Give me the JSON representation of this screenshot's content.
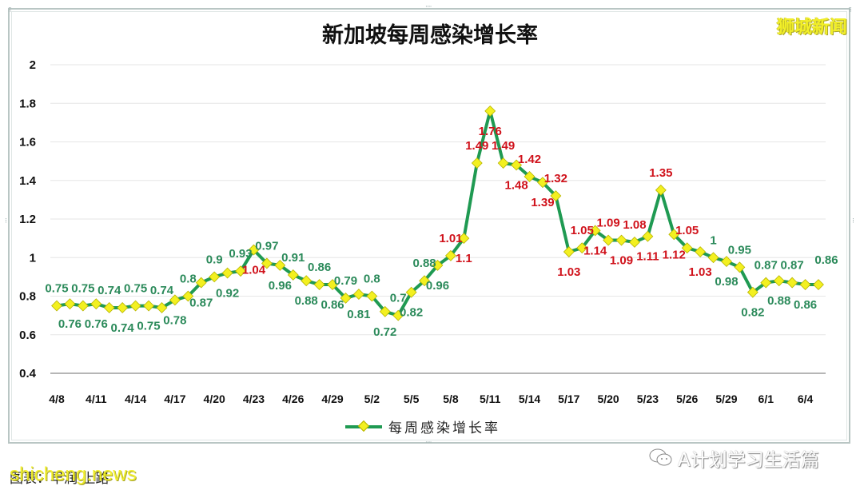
{
  "title": "新加坡每周感染增长率",
  "brand_watermark": "狮城新闻",
  "credit_text": "图表：早润 上路",
  "credit_watermark": "shicheng.news",
  "wechat_account": "A计划学习生活篇",
  "legend_label": "每周感染增长率",
  "colors": {
    "line": "#1f9a52",
    "marker_fill": "#f3f020",
    "marker_stroke": "#b7b400",
    "label_below_1": "#2b8a5a",
    "label_above_1": "#d0121b",
    "grid": "#e6e6e6"
  },
  "chart_data": {
    "type": "line",
    "title": "新加坡每周感染增长率",
    "xlabel": "",
    "ylabel": "",
    "ylim": [
      0.4,
      2.0
    ],
    "yticks": [
      0.4,
      0.6,
      0.8,
      1,
      1.2,
      1.4,
      1.6,
      1.8,
      2
    ],
    "grid": true,
    "legend_position": "bottom",
    "x": [
      "4/8",
      "4/9",
      "4/10",
      "4/11",
      "4/12",
      "4/13",
      "4/14",
      "4/15",
      "4/16",
      "4/17",
      "4/18",
      "4/19",
      "4/20",
      "4/21",
      "4/22",
      "4/23",
      "4/24",
      "4/25",
      "4/26",
      "4/27",
      "4/28",
      "4/29",
      "4/30",
      "5/1",
      "5/2",
      "5/3",
      "5/4",
      "5/5",
      "5/6",
      "5/7",
      "5/8",
      "5/9",
      "5/10",
      "5/11",
      "5/12",
      "5/13",
      "5/14",
      "5/15",
      "5/16",
      "5/17",
      "5/18",
      "5/19",
      "5/20",
      "5/21",
      "5/22",
      "5/23",
      "5/24",
      "5/25",
      "5/26",
      "5/27",
      "5/28",
      "5/29",
      "5/30",
      "5/31",
      "6/1",
      "6/2",
      "6/3",
      "6/4",
      "6/5"
    ],
    "xtick_labels": [
      "4/8",
      "4/11",
      "4/14",
      "4/17",
      "4/20",
      "4/23",
      "4/26",
      "4/29",
      "5/2",
      "5/5",
      "5/8",
      "5/11",
      "5/14",
      "5/17",
      "5/20",
      "5/23",
      "5/26",
      "5/29",
      "6/1",
      "6/4"
    ],
    "series": [
      {
        "name": "每周感染增长率",
        "values": [
          0.75,
          0.76,
          0.75,
          0.76,
          0.74,
          0.74,
          0.75,
          0.75,
          0.74,
          0.78,
          0.8,
          0.87,
          0.9,
          0.92,
          0.93,
          1.04,
          0.97,
          0.96,
          0.91,
          0.88,
          0.86,
          0.86,
          0.79,
          0.81,
          0.8,
          0.72,
          0.7,
          0.82,
          0.88,
          0.96,
          1.01,
          1.1,
          1.49,
          1.76,
          1.49,
          1.48,
          1.42,
          1.39,
          1.32,
          1.03,
          1.05,
          1.14,
          1.09,
          1.09,
          1.08,
          1.11,
          1.35,
          1.12,
          1.05,
          1.03,
          1,
          0.98,
          0.95,
          0.82,
          0.87,
          0.88,
          0.87,
          0.86,
          0.86
        ]
      }
    ],
    "highlighted_last_value": "0.86"
  }
}
